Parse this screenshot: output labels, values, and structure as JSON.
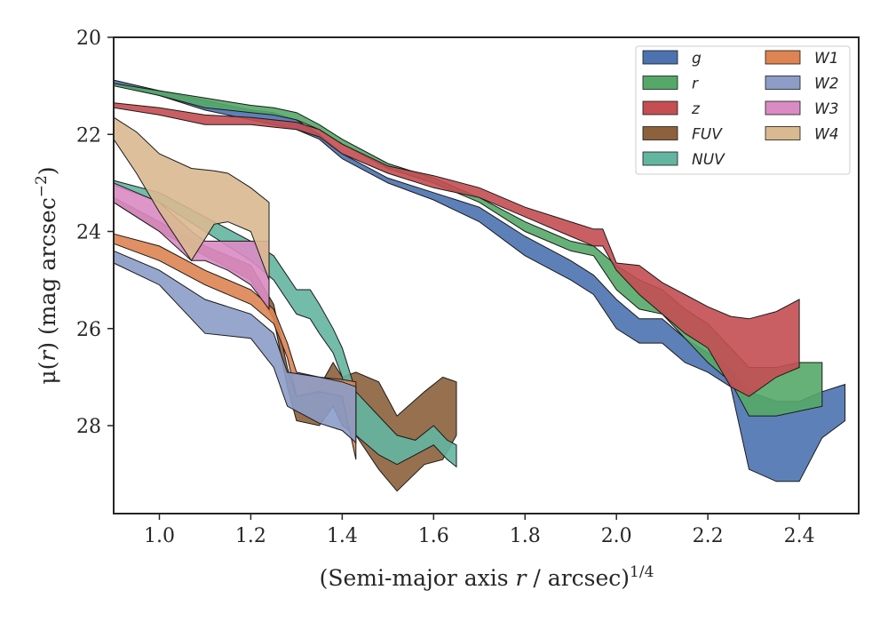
{
  "chart_data": {
    "type": "area",
    "xlabel": "(Semi-major axis r / arcsec)^1/4",
    "xlabel_prefix": "(Semi-major axis ",
    "xlabel_var": "r",
    "xlabel_suffix": " / arcsec)",
    "xlabel_exp": "1/4",
    "ylabel": "μ(r) (mag arcsec−2)",
    "ylabel_mu": "μ(",
    "ylabel_var": "r",
    "ylabel_mid": ") (mag arcsec",
    "ylabel_exp": "−2",
    "ylabel_close": ")",
    "xlim": [
      0.9,
      2.53
    ],
    "ylim": [
      29.8,
      20
    ],
    "y_inverted": true,
    "xticks": [
      1.0,
      1.2,
      1.4,
      1.6,
      1.8,
      2.0,
      2.2,
      2.4
    ],
    "xtick_labels": [
      "1.0",
      "1.2",
      "1.4",
      "1.6",
      "1.8",
      "2.0",
      "2.2",
      "2.4"
    ],
    "yticks": [
      20,
      22,
      24,
      26,
      28
    ],
    "ytick_labels": [
      "20",
      "22",
      "24",
      "26",
      "28"
    ],
    "grid": false,
    "legend_position": "top-right",
    "legend_columns": 2,
    "series": [
      {
        "name": "g",
        "color": "#4c72b0",
        "x": [
          0.9,
          1.0,
          1.1,
          1.2,
          1.25,
          1.3,
          1.35,
          1.4,
          1.5,
          1.6,
          1.7,
          1.8,
          1.9,
          1.95,
          2.0,
          2.05,
          2.1,
          2.15,
          2.2,
          2.25,
          2.29,
          2.35,
          2.4,
          2.45,
          2.5
        ],
        "lower": [
          20.88,
          21.1,
          21.3,
          21.5,
          21.55,
          21.7,
          22.0,
          22.4,
          22.9,
          23.2,
          23.5,
          24.1,
          24.6,
          24.9,
          25.4,
          25.8,
          25.8,
          26.2,
          26.5,
          26.8,
          27.3,
          27.5,
          27.5,
          27.3,
          27.15
        ],
        "upper": [
          20.95,
          21.2,
          21.5,
          21.7,
          21.8,
          21.9,
          22.1,
          22.5,
          23.0,
          23.35,
          23.8,
          24.5,
          25.0,
          25.3,
          26.0,
          26.3,
          26.3,
          26.7,
          26.9,
          27.2,
          28.9,
          29.15,
          29.15,
          28.25,
          27.9
        ]
      },
      {
        "name": "r",
        "color": "#55a868",
        "x": [
          0.9,
          1.0,
          1.1,
          1.2,
          1.25,
          1.3,
          1.35,
          1.4,
          1.5,
          1.6,
          1.7,
          1.8,
          1.9,
          1.95,
          2.0,
          2.05,
          2.1,
          2.15,
          2.2,
          2.25,
          2.29,
          2.35,
          2.4,
          2.45
        ],
        "lower": [
          20.95,
          21.1,
          21.25,
          21.4,
          21.45,
          21.55,
          21.8,
          22.1,
          22.6,
          22.9,
          23.3,
          23.8,
          24.2,
          24.3,
          24.7,
          25.0,
          25.2,
          25.6,
          25.9,
          26.4,
          26.8,
          26.8,
          26.7,
          26.7
        ],
        "upper": [
          21.0,
          21.2,
          21.45,
          21.55,
          21.6,
          21.7,
          21.9,
          22.2,
          22.7,
          23.0,
          23.4,
          24.0,
          24.4,
          24.5,
          25.2,
          25.6,
          25.7,
          26.2,
          26.7,
          27.1,
          27.8,
          27.8,
          27.7,
          27.6
        ]
      },
      {
        "name": "z",
        "color": "#c44e52",
        "x": [
          0.9,
          1.0,
          1.1,
          1.2,
          1.25,
          1.3,
          1.35,
          1.4,
          1.5,
          1.6,
          1.7,
          1.8,
          1.9,
          1.95,
          1.97,
          2.0,
          2.05,
          2.1,
          2.15,
          2.2,
          2.25,
          2.29,
          2.35,
          2.4
        ],
        "lower": [
          21.35,
          21.45,
          21.6,
          21.65,
          21.7,
          21.75,
          21.9,
          22.2,
          22.65,
          22.85,
          23.1,
          23.5,
          23.8,
          23.95,
          23.95,
          24.65,
          24.7,
          25.05,
          25.3,
          25.55,
          25.75,
          25.8,
          25.65,
          25.4
        ],
        "upper": [
          21.45,
          21.6,
          21.8,
          21.8,
          21.85,
          21.9,
          22.05,
          22.4,
          22.8,
          23.1,
          23.3,
          23.7,
          24.1,
          24.3,
          24.3,
          24.8,
          25.3,
          25.7,
          26.1,
          26.4,
          27.2,
          27.4,
          27.0,
          26.8
        ]
      },
      {
        "name": "FUV",
        "color": "#8c613c",
        "x": [
          0.9,
          1.0,
          1.1,
          1.2,
          1.25,
          1.28,
          1.3,
          1.35,
          1.38,
          1.4,
          1.43,
          1.48,
          1.52,
          1.58,
          1.62,
          1.65
        ],
        "lower": [
          23.3,
          23.8,
          24.3,
          24.7,
          25.5,
          26.8,
          27.4,
          27.2,
          26.7,
          27.0,
          26.9,
          27.1,
          27.8,
          27.3,
          27.0,
          27.1
        ],
        "upper": [
          23.4,
          24.0,
          24.5,
          25.0,
          25.8,
          27.2,
          27.9,
          28.0,
          27.6,
          28.0,
          28.2,
          28.9,
          29.35,
          28.8,
          28.7,
          28.2
        ]
      },
      {
        "name": "NUV",
        "color": "#64b5a0",
        "x": [
          0.9,
          1.0,
          1.1,
          1.2,
          1.25,
          1.3,
          1.33,
          1.35,
          1.38,
          1.4,
          1.43,
          1.48,
          1.52,
          1.56,
          1.6,
          1.63,
          1.65
        ],
        "lower": [
          22.95,
          23.2,
          23.7,
          24.2,
          24.5,
          25.2,
          25.2,
          25.5,
          26.0,
          26.4,
          27.3,
          27.8,
          28.2,
          28.3,
          28.0,
          28.3,
          28.4
        ],
        "upper": [
          23.05,
          23.4,
          24.0,
          24.6,
          25.0,
          25.7,
          25.8,
          26.1,
          26.5,
          27.0,
          28.2,
          28.6,
          28.8,
          28.6,
          28.4,
          28.7,
          28.85
        ]
      },
      {
        "name": "W1",
        "color": "#dd8452",
        "x": [
          0.9,
          1.0,
          1.1,
          1.2,
          1.25,
          1.28,
          1.3,
          1.35,
          1.4,
          1.43
        ],
        "lower": [
          24.05,
          24.3,
          24.8,
          25.2,
          25.6,
          26.3,
          26.9,
          27.0,
          27.05,
          27.1
        ],
        "upper": [
          24.25,
          24.6,
          25.1,
          25.5,
          25.9,
          26.6,
          27.4,
          27.3,
          27.4,
          28.7
        ]
      },
      {
        "name": "W2",
        "color": "#8c9cc6",
        "x": [
          0.9,
          1.0,
          1.1,
          1.2,
          1.25,
          1.28,
          1.35,
          1.4,
          1.43
        ],
        "lower": [
          24.4,
          24.8,
          25.4,
          25.7,
          26.1,
          26.9,
          27.0,
          27.1,
          27.2
        ],
        "upper": [
          24.65,
          25.1,
          26.1,
          26.2,
          26.8,
          27.6,
          27.95,
          28.1,
          28.35
        ]
      },
      {
        "name": "W3",
        "color": "#da8bc3",
        "x": [
          0.9,
          1.0,
          1.07,
          1.1,
          1.15,
          1.2,
          1.24
        ],
        "lower": [
          23.0,
          23.4,
          24.0,
          24.2,
          24.2,
          24.2,
          24.2
        ],
        "upper": [
          23.4,
          24.0,
          24.6,
          24.6,
          24.8,
          25.1,
          25.6
        ]
      },
      {
        "name": "W4",
        "color": "#d9b990",
        "x": [
          0.9,
          0.95,
          1.0,
          1.07,
          1.12,
          1.15,
          1.2,
          1.24
        ],
        "lower": [
          21.65,
          21.95,
          22.4,
          22.7,
          22.75,
          22.8,
          23.1,
          23.4
        ],
        "upper": [
          22.1,
          22.8,
          23.6,
          24.6,
          23.85,
          23.8,
          24.0,
          25.0
        ]
      }
    ]
  }
}
